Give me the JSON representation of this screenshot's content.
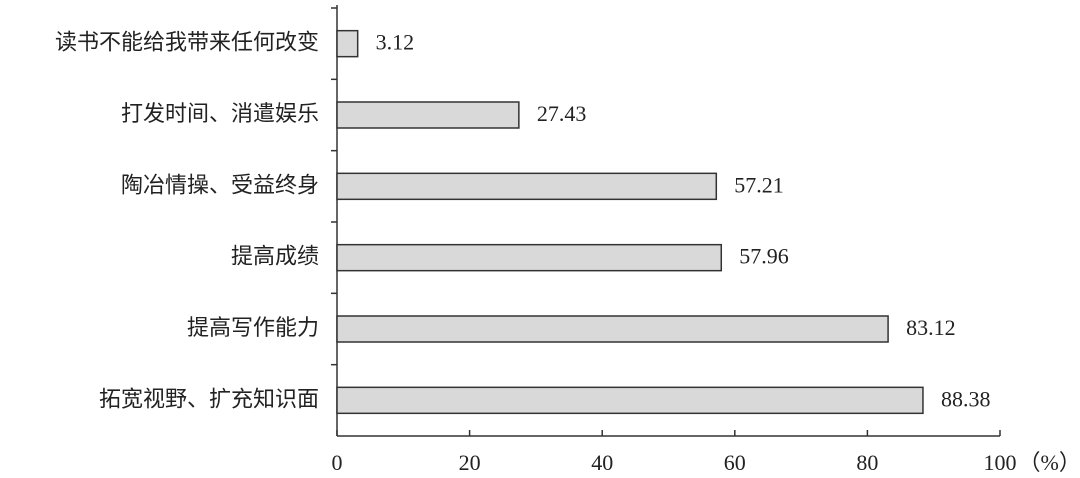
{
  "chart_data": {
    "type": "barh",
    "categories": [
      "读书不能给我带来任何改变",
      "打发时间、消遣娱乐",
      "陶冶情操、受益终身",
      "提高成绩",
      "提高写作能力",
      "拓宽视野、扩充知识面"
    ],
    "values": [
      3.12,
      27.43,
      57.21,
      57.96,
      83.12,
      88.38
    ],
    "color": "#d9d9d9",
    "xlim": [
      0,
      100
    ],
    "xticks": [
      0,
      20,
      40,
      60,
      80,
      100
    ],
    "xlabel": "（%）"
  }
}
